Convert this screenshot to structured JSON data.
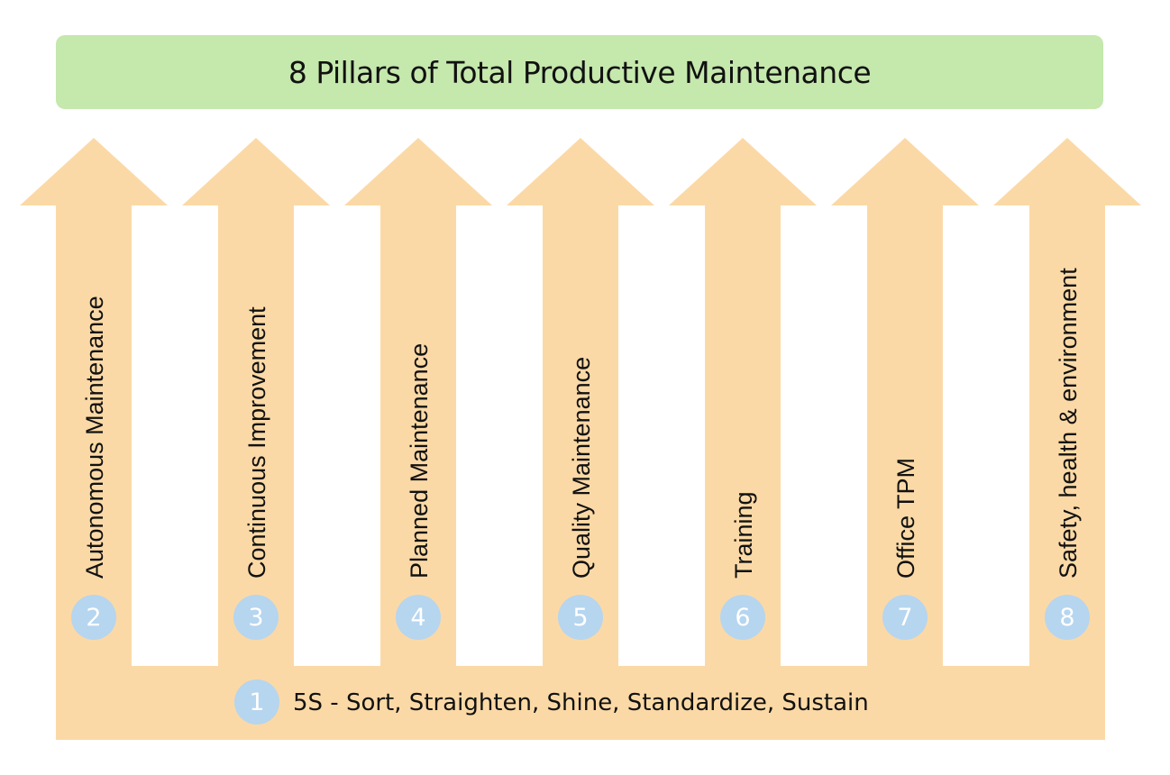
{
  "title": "8 Pillars of Total Productive Maintenance",
  "colors": {
    "banner": "#c5e8ad",
    "arrow": "#fbd9a6",
    "badge": "#b6d5ef",
    "text": "#111111"
  },
  "foundation": {
    "number": "1",
    "label": "5S - Sort, Straighten, Shine, Standardize, Sustain"
  },
  "pillars": [
    {
      "number": "2",
      "label": "Autonomous Maintenance"
    },
    {
      "number": "3",
      "label": "Continuous Improvement"
    },
    {
      "number": "4",
      "label": "Planned Maintenance"
    },
    {
      "number": "5",
      "label": "Quality Maintenance"
    },
    {
      "number": "6",
      "label": "Training"
    },
    {
      "number": "7",
      "label": "Office TPM"
    },
    {
      "number": "8",
      "label": "Safety, health & environment"
    }
  ]
}
